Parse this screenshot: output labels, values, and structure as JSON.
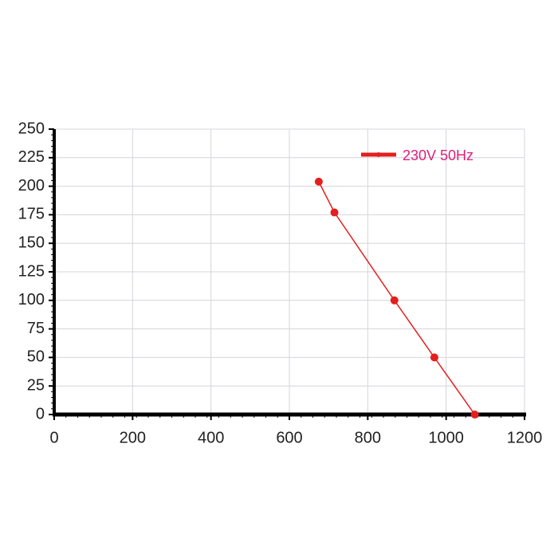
{
  "chart_data": {
    "type": "line",
    "x": [
      675,
      715,
      868,
      970,
      1073
    ],
    "series": [
      {
        "name": "230V 50Hz",
        "color": "#e41f1f",
        "label_color": "#e0207a",
        "values": [
          204,
          177,
          100,
          50,
          0
        ]
      }
    ],
    "xlim": [
      0,
      1200
    ],
    "xticks": [
      0,
      200,
      400,
      600,
      800,
      1000,
      1200
    ],
    "ylim": [
      0,
      250
    ],
    "yticks": [
      0,
      25,
      50,
      75,
      100,
      125,
      150,
      175,
      200,
      225,
      250
    ],
    "grid": true,
    "legend": "top-right"
  }
}
